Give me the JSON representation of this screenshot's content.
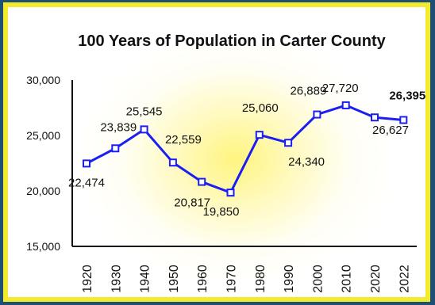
{
  "chart_data": {
    "type": "line",
    "title": "100 Years of Population in Carter County",
    "xlabel": "",
    "ylabel": "",
    "ylim": [
      15000,
      30000
    ],
    "y_ticks": [
      "15,000",
      "20,000",
      "25,000",
      "30,000"
    ],
    "y_tick_values": [
      15000,
      20000,
      25000,
      30000
    ],
    "categories": [
      "1920",
      "1930",
      "1940",
      "1950",
      "1960",
      "1970",
      "1980",
      "1990",
      "2000",
      "2010",
      "2020",
      "2022"
    ],
    "values": [
      22474,
      23839,
      25545,
      22559,
      20817,
      19850,
      25060,
      24340,
      26889,
      27720,
      26627,
      26395
    ],
    "data_labels": [
      "22,474",
      "23,839",
      "25,545",
      "22,559",
      "20,817",
      "19,850",
      "25,060",
      "24,340",
      "26,889",
      "27,720",
      "26,627",
      "26,395"
    ],
    "highlighted_label": "26,395",
    "line_color": "#1b1ff2",
    "marker": "square",
    "grid": false,
    "legend": "none"
  },
  "colors": {
    "background": "#ffffff",
    "frame": "#f2ea2d",
    "highlight": "#fff47a",
    "axis": "#111111"
  }
}
